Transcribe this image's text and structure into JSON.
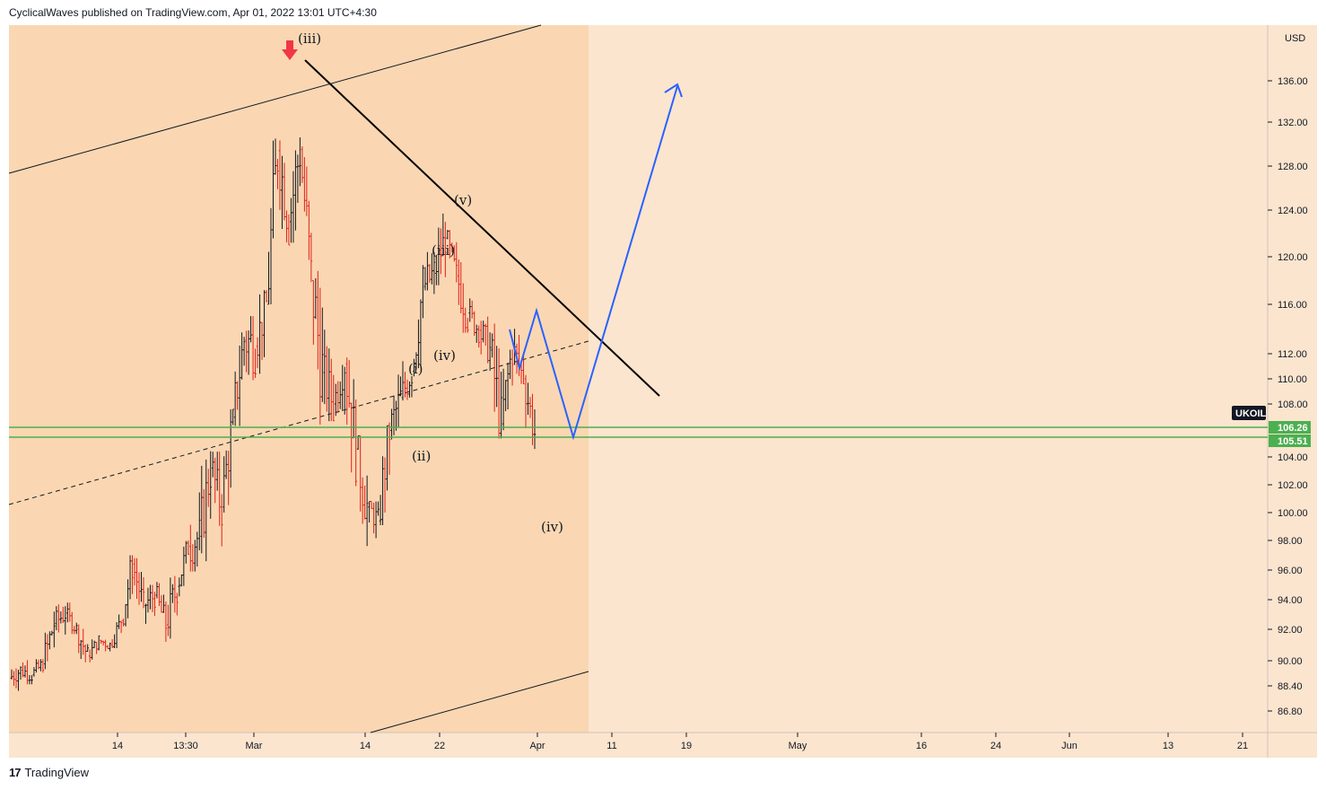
{
  "header": {
    "attribution": "CyclicalWaves published on TradingView.com, Apr 01, 2022 13:01 UTC+4:30"
  },
  "footer": {
    "brand": "TradingView",
    "logo_glyph": "17"
  },
  "colors": {
    "background": "#fbe5cf",
    "shaded_zone": "#fad7b2",
    "bar_up": "#131722",
    "bar_down": "#e0201b",
    "projection": "#2962ff",
    "support_lines": "#4caf50",
    "trendline": "#000000",
    "arrow": "#f23645"
  },
  "chart_data": {
    "type": "ohlc",
    "symbol": "UKOIL",
    "currency": "USD",
    "price_axis_ticks": [
      "136.00",
      "132.00",
      "128.00",
      "124.00",
      "120.00",
      "116.00",
      "112.00",
      "110.00",
      "108.00",
      "104.00",
      "102.00",
      "100.00",
      "98.00",
      "96.00",
      "94.00",
      "92.00",
      "90.00",
      "88.40",
      "86.80"
    ],
    "time_axis_ticks": [
      "14",
      "13:30",
      "Mar",
      "14",
      "22",
      "Apr",
      "11",
      "19",
      "May",
      "16",
      "24",
      "Jun",
      "13",
      "21"
    ],
    "current_price_label": "UKOIL",
    "horizontal_levels": [
      {
        "label": "106.26",
        "value": 106.26
      },
      {
        "label": "105.51",
        "value": 105.51
      }
    ],
    "wave_labels": [
      "(iii)",
      "(v)",
      "(iii)",
      "(iv)",
      "(i)",
      "(ii)",
      "(iv)"
    ],
    "sample_bars": [
      [
        88.9,
        89.9,
        87.6,
        89.4
      ],
      [
        89.4,
        90.6,
        88.5,
        89.1
      ],
      [
        89.1,
        90.1,
        88.2,
        89.8
      ],
      [
        89.8,
        93.5,
        89.4,
        92.4
      ],
      [
        92.4,
        94.3,
        91.3,
        93.1
      ],
      [
        93.1,
        93.8,
        91.7,
        92.0
      ],
      [
        92.0,
        92.5,
        89.9,
        90.3
      ],
      [
        90.3,
        91.6,
        89.9,
        91.3
      ],
      [
        91.3,
        92.2,
        90.6,
        91.0
      ],
      [
        91.0,
        93.0,
        90.8,
        92.6
      ],
      [
        92.6,
        97.0,
        92.2,
        96.4
      ],
      [
        96.4,
        96.8,
        93.1,
        93.6
      ],
      [
        93.6,
        95.0,
        91.4,
        94.3
      ],
      [
        94.3,
        95.2,
        91.2,
        92.3
      ],
      [
        92.3,
        95.6,
        90.4,
        94.9
      ],
      [
        94.9,
        98.0,
        94.2,
        97.6
      ],
      [
        97.6,
        101.9,
        95.9,
        98.3
      ],
      [
        98.3,
        104.7,
        96.6,
        103.2
      ],
      [
        103.2,
        104.4,
        97.6,
        100.4
      ],
      [
        100.4,
        107.6,
        100.0,
        107.0
      ],
      [
        107.0,
        113.8,
        106.3,
        113.1
      ],
      [
        113.1,
        118.8,
        109.9,
        112.6
      ],
      [
        112.6,
        117.2,
        110.4,
        116.0
      ],
      [
        116.0,
        130.5,
        116.0,
        129.4
      ],
      [
        129.4,
        131.4,
        121.0,
        123.0
      ],
      [
        123.0,
        133.2,
        121.2,
        129.5
      ],
      [
        129.5,
        129.8,
        117.1,
        118.0
      ],
      [
        118.0,
        120.0,
        105.8,
        110.5
      ],
      [
        110.5,
        114.4,
        106.7,
        108.0
      ],
      [
        108.0,
        112.9,
        107.1,
        111.2
      ],
      [
        111.2,
        111.7,
        101.9,
        104.6
      ],
      [
        104.6,
        105.6,
        97.5,
        100.4
      ],
      [
        100.4,
        100.8,
        97.2,
        99.4
      ],
      [
        99.4,
        106.6,
        99.1,
        106.0
      ],
      [
        106.0,
        110.4,
        104.8,
        108.5
      ],
      [
        108.5,
        111.4,
        105.9,
        110.6
      ],
      [
        110.6,
        119.3,
        110.2,
        117.5
      ],
      [
        117.5,
        120.4,
        114.0,
        118.6
      ],
      [
        118.6,
        123.7,
        117.6,
        121.6
      ],
      [
        121.6,
        122.3,
        117.2,
        118.4
      ],
      [
        118.4,
        121.0,
        113.7,
        115.3
      ],
      [
        115.3,
        116.5,
        112.5,
        113.9
      ],
      [
        113.9,
        115.3,
        109.9,
        112.3
      ],
      [
        112.3,
        114.7,
        105.4,
        106.5
      ],
      [
        106.5,
        113.5,
        106.0,
        112.5
      ],
      [
        112.5,
        115.0,
        109.6,
        110.0
      ],
      [
        110.0,
        110.3,
        104.6,
        105.8
      ]
    ]
  }
}
